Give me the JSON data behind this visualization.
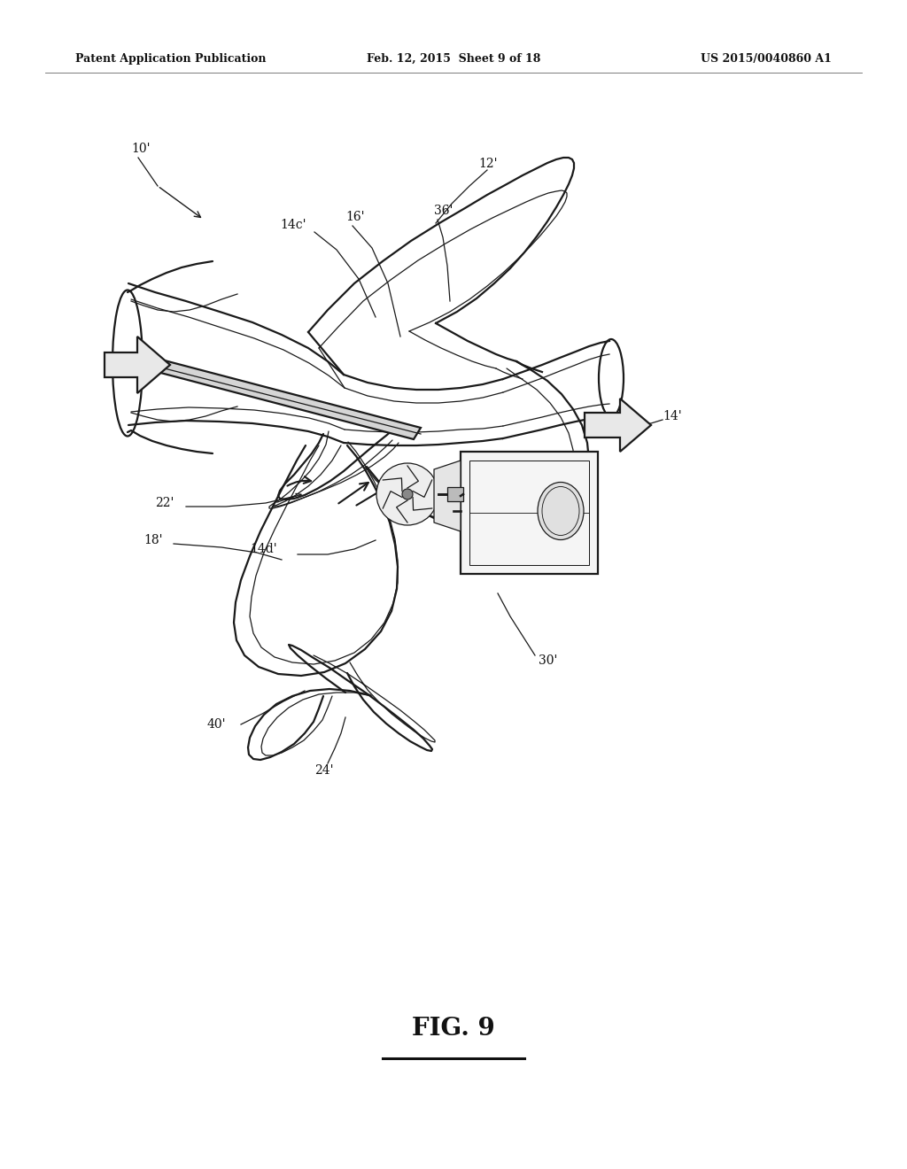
{
  "background_color": "#ffffff",
  "header_left": "Patent Application Publication",
  "header_center": "Feb. 12, 2015  Sheet 9 of 18",
  "header_right": "US 2015/0040860 A1",
  "figure_label": "FIG. 9",
  "line_color": "#1a1a1a",
  "lw_main": 1.6,
  "lw_thin": 0.9,
  "lw_thick": 2.2
}
